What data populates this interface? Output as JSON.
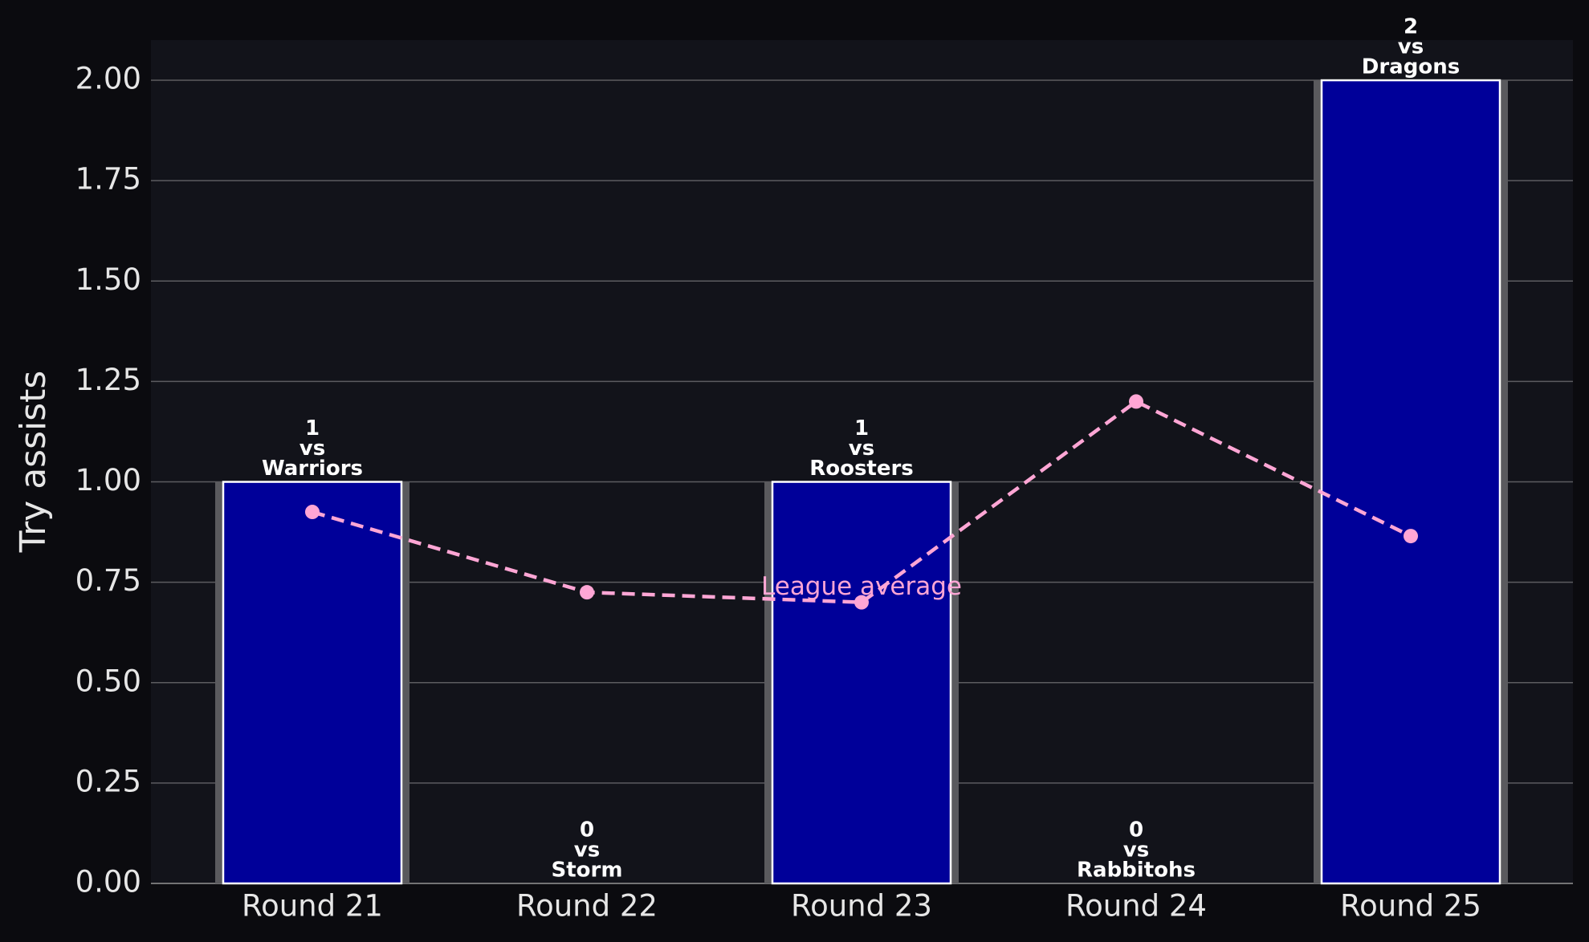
{
  "chart_data": {
    "type": "bar",
    "y_label": "Try assists",
    "categories": [
      "Round 21",
      "Round 22",
      "Round 23",
      "Round 24",
      "Round 25"
    ],
    "values": [
      1,
      0,
      1,
      0,
      2
    ],
    "opponents": [
      "Warriors",
      "Storm",
      "Roosters",
      "Rabbitohs",
      "Dragons"
    ],
    "label_joiner": "vs",
    "color": "#000099",
    "league_average": {
      "name": "League average",
      "color": "#ffa6d5",
      "values": [
        0.925,
        0.725,
        0.7,
        1.2,
        0.865
      ]
    },
    "ylim": [
      0,
      2.1
    ],
    "yticks": [
      {
        "value": 0,
        "label": "0.00"
      },
      {
        "value": 0.25,
        "label": "0.25"
      },
      {
        "value": 0.5,
        "label": "0.50"
      },
      {
        "value": 0.75,
        "label": "0.75"
      },
      {
        "value": 1,
        "label": "1.00"
      },
      {
        "value": 1.25,
        "label": "1.25"
      },
      {
        "value": 1.5,
        "label": "1.50"
      },
      {
        "value": 1.75,
        "label": "1.75"
      },
      {
        "value": 2,
        "label": "2.00"
      }
    ],
    "grid": true
  }
}
